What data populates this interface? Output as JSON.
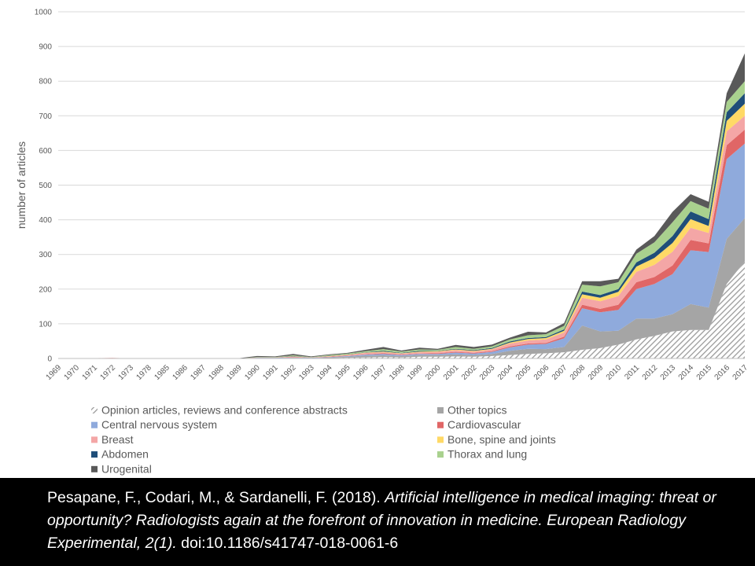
{
  "chart_data": {
    "type": "area",
    "stacked": true,
    "ylabel": "number of articles",
    "xlabel": "",
    "ylim": [
      0,
      1000
    ],
    "yticks": [
      0,
      100,
      200,
      300,
      400,
      500,
      600,
      700,
      800,
      900,
      1000
    ],
    "grid": true,
    "legend_position": "bottom",
    "categories": [
      "1969",
      "1970",
      "1971",
      "1972",
      "1973",
      "1978",
      "1985",
      "1986",
      "1987",
      "1988",
      "1989",
      "1990",
      "1991",
      "1992",
      "1993",
      "1994",
      "1995",
      "1996",
      "1997",
      "1998",
      "1999",
      "2000",
      "2001",
      "2002",
      "2003",
      "2004",
      "2005",
      "2006",
      "2007",
      "2008",
      "2009",
      "2010",
      "2011",
      "2012",
      "2013",
      "2014",
      "2015",
      "2016",
      "2017"
    ],
    "series": [
      {
        "name": "Opinion articles, reviews and conference abstracts",
        "color": "#b0b0b0",
        "pattern": "hatch",
        "values": [
          0,
          0,
          0,
          0,
          0,
          0,
          0,
          0,
          0,
          0,
          0,
          0,
          0,
          0,
          0,
          1,
          2,
          3,
          4,
          3,
          5,
          5,
          6,
          5,
          7,
          10,
          13,
          15,
          18,
          25,
          30,
          40,
          55,
          65,
          78,
          82,
          82,
          215,
          280
        ]
      },
      {
        "name": "Other topics",
        "color": "#a5a5a5",
        "values": [
          0,
          0,
          0,
          0,
          0,
          0,
          0,
          0,
          0,
          0,
          0,
          1,
          1,
          2,
          1,
          2,
          3,
          5,
          5,
          4,
          5,
          5,
          6,
          5,
          6,
          12,
          15,
          12,
          15,
          70,
          48,
          40,
          60,
          50,
          50,
          75,
          65,
          130,
          125
        ]
      },
      {
        "name": "Central nervous system",
        "color": "#8faadc",
        "values": [
          0,
          0,
          0,
          0,
          0,
          0,
          0,
          0,
          0,
          0,
          0,
          1,
          1,
          1,
          1,
          1,
          2,
          3,
          4,
          3,
          3,
          3,
          5,
          4,
          6,
          10,
          12,
          15,
          25,
          50,
          55,
          60,
          85,
          100,
          115,
          155,
          160,
          230,
          215
        ]
      },
      {
        "name": "Cardiovascular",
        "color": "#e06666",
        "values": [
          0,
          0,
          0,
          1,
          0,
          0,
          0,
          0,
          0,
          0,
          0,
          0,
          0,
          1,
          0,
          1,
          1,
          1,
          2,
          1,
          1,
          2,
          2,
          2,
          2,
          3,
          3,
          3,
          5,
          10,
          10,
          15,
          20,
          20,
          25,
          30,
          25,
          40,
          40
        ]
      },
      {
        "name": "Breast",
        "color": "#f4a6a6",
        "values": [
          0,
          0,
          1,
          1,
          0,
          0,
          0,
          0,
          0,
          0,
          0,
          1,
          1,
          1,
          1,
          1,
          2,
          4,
          3,
          3,
          4,
          4,
          5,
          4,
          5,
          8,
          9,
          10,
          12,
          20,
          22,
          25,
          30,
          35,
          40,
          35,
          30,
          40,
          40
        ]
      },
      {
        "name": "Bone, spine and joints",
        "color": "#ffd966",
        "values": [
          0,
          0,
          0,
          0,
          0,
          0,
          0,
          0,
          0,
          0,
          0,
          0,
          0,
          1,
          0,
          1,
          1,
          1,
          2,
          1,
          2,
          2,
          2,
          2,
          2,
          3,
          4,
          4,
          5,
          10,
          10,
          12,
          15,
          20,
          25,
          25,
          20,
          30,
          35
        ]
      },
      {
        "name": "Abdomen",
        "color": "#1f4e79",
        "values": [
          0,
          0,
          0,
          0,
          0,
          0,
          0,
          0,
          0,
          0,
          0,
          0,
          0,
          1,
          0,
          1,
          1,
          1,
          2,
          1,
          2,
          1,
          2,
          2,
          2,
          3,
          3,
          3,
          4,
          8,
          8,
          8,
          12,
          15,
          20,
          22,
          20,
          25,
          30
        ]
      },
      {
        "name": "Thorax and lung",
        "color": "#a9d18e",
        "values": [
          0,
          0,
          0,
          0,
          0,
          0,
          0,
          0,
          0,
          0,
          0,
          1,
          1,
          2,
          1,
          2,
          2,
          3,
          5,
          4,
          4,
          3,
          5,
          4,
          5,
          6,
          8,
          8,
          10,
          20,
          25,
          20,
          25,
          30,
          40,
          30,
          30,
          30,
          35
        ]
      },
      {
        "name": "Urogenital",
        "color": "#595959",
        "values": [
          0,
          0,
          0,
          0,
          0,
          0,
          1,
          1,
          1,
          1,
          1,
          3,
          2,
          4,
          2,
          2,
          2,
          4,
          6,
          3,
          5,
          3,
          6,
          5,
          5,
          5,
          10,
          5,
          8,
          10,
          15,
          10,
          12,
          18,
          30,
          20,
          20,
          25,
          80
        ]
      }
    ]
  },
  "citation": {
    "authors": "Pesapane, F., Codari, M., & Sardanelli, F. (2018).",
    "title": "Artificial intelligence in medical imaging: threat or opportunity? Radiologists again at the forefront of innovation in medicine.",
    "journal": "European Radiology Experimental, 2(1).",
    "doi": "doi:10.1186/s41747-018-0061-6"
  }
}
